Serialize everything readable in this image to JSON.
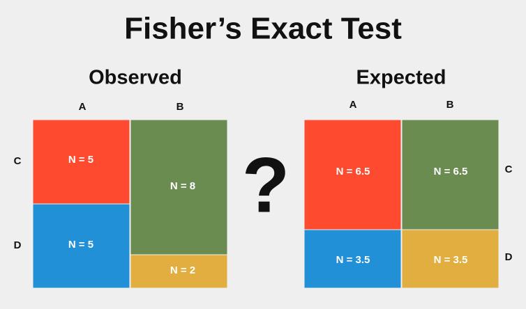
{
  "title": "Fisher’s Exact Test",
  "question": "?",
  "observed": {
    "title": "Observed",
    "columns": [
      "A",
      "B"
    ],
    "rows": [
      "C",
      "D"
    ],
    "cells": [
      "N = 5",
      "N = 5",
      "N = 8",
      "N = 2"
    ]
  },
  "expected": {
    "title": "Expected",
    "columns": [
      "A",
      "B"
    ],
    "rows": [
      "C",
      "D"
    ],
    "cells": [
      "N = 6.5",
      "N = 3.5",
      "N = 6.5",
      "N = 3.5"
    ]
  }
}
